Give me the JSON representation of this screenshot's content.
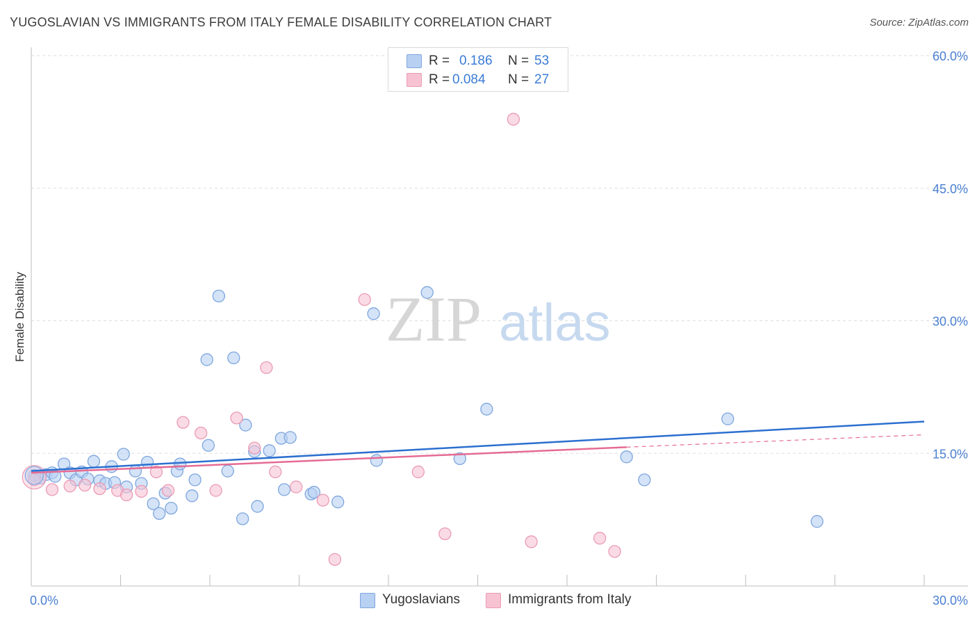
{
  "title": "YUGOSLAVIAN VS IMMIGRANTS FROM ITALY FEMALE DISABILITY CORRELATION CHART",
  "source": "Source: ZipAtlas.com",
  "legend": {
    "r_label": "R =",
    "n_label": "N =",
    "series1": {
      "r": "0.186",
      "n": "53"
    },
    "series2": {
      "r": "0.084",
      "n": "27"
    }
  },
  "watermark": {
    "zip": "ZIP",
    "atlas": "atlas"
  },
  "colors": {
    "blue_fill": "#b8d0f2",
    "blue_stroke": "#7ea6de",
    "blue_line": "#2b6fcf",
    "pink_fill": "#f7c3d3",
    "pink_stroke": "#eb9ab4",
    "pink_line": "#e56b94",
    "tick_text": "#4a7fd0",
    "grid": "#dddddd"
  },
  "chart_data": {
    "type": "scatter",
    "xlabel": "",
    "ylabel": "Female Disability",
    "xlim": [
      0,
      30
    ],
    "ylim": [
      0,
      60
    ],
    "x_tick_labels": [
      "0.0%",
      "30.0%"
    ],
    "y_ticks": [
      15,
      30,
      45,
      60
    ],
    "y_tick_labels": [
      "15.0%",
      "30.0%",
      "45.0%",
      "60.0%"
    ],
    "grid": true,
    "legend_position": "top-center",
    "series": [
      {
        "name": "Yugoslavians",
        "r": 0.186,
        "n": 53,
        "trend": {
          "x": [
            0,
            30
          ],
          "y": [
            13.0,
            18.6
          ]
        },
        "points": [
          [
            0.1,
            12.5
          ],
          [
            0.3,
            12.2
          ],
          [
            0.5,
            12.6
          ],
          [
            0.7,
            12.8
          ],
          [
            0.8,
            12.4
          ],
          [
            1.1,
            13.8
          ],
          [
            1.3,
            12.8
          ],
          [
            1.5,
            12.0
          ],
          [
            1.7,
            12.9
          ],
          [
            1.9,
            12.1
          ],
          [
            2.1,
            14.1
          ],
          [
            2.3,
            11.9
          ],
          [
            2.5,
            11.6
          ],
          [
            2.7,
            13.5
          ],
          [
            2.8,
            11.7
          ],
          [
            3.1,
            14.9
          ],
          [
            3.2,
            11.2
          ],
          [
            3.5,
            13.0
          ],
          [
            3.7,
            11.6
          ],
          [
            3.9,
            14.0
          ],
          [
            4.1,
            9.3
          ],
          [
            4.3,
            8.2
          ],
          [
            4.5,
            10.5
          ],
          [
            4.7,
            8.8
          ],
          [
            4.9,
            13.0
          ],
          [
            5.0,
            13.8
          ],
          [
            5.4,
            10.2
          ],
          [
            5.5,
            12.0
          ],
          [
            5.9,
            25.6
          ],
          [
            5.95,
            15.9
          ],
          [
            6.3,
            32.8
          ],
          [
            6.6,
            13.0
          ],
          [
            7.1,
            7.6
          ],
          [
            6.8,
            25.8
          ],
          [
            7.2,
            18.2
          ],
          [
            7.5,
            15.2
          ],
          [
            7.6,
            9.0
          ],
          [
            8.0,
            15.3
          ],
          [
            8.4,
            16.7
          ],
          [
            8.5,
            10.9
          ],
          [
            8.7,
            16.8
          ],
          [
            9.4,
            10.4
          ],
          [
            9.5,
            10.6
          ],
          [
            10.3,
            9.5
          ],
          [
            11.5,
            30.8
          ],
          [
            11.6,
            14.2
          ],
          [
            13.3,
            33.2
          ],
          [
            14.4,
            14.4
          ],
          [
            15.3,
            20.0
          ],
          [
            20.0,
            14.6
          ],
          [
            20.6,
            12.0
          ],
          [
            23.4,
            18.9
          ],
          [
            26.4,
            7.3
          ]
        ]
      },
      {
        "name": "Immigrants from Italy",
        "r": 0.084,
        "n": 27,
        "trend": {
          "x": [
            0,
            20
          ],
          "y": [
            12.8,
            15.7
          ]
        },
        "trend_dashed": {
          "x": [
            20,
            30
          ],
          "y": [
            15.7,
            17.1
          ]
        },
        "points": [
          [
            0.1,
            12.0
          ],
          [
            0.7,
            10.9
          ],
          [
            1.3,
            11.3
          ],
          [
            1.8,
            11.4
          ],
          [
            2.3,
            11.0
          ],
          [
            2.9,
            10.8
          ],
          [
            3.2,
            10.3
          ],
          [
            3.7,
            10.7
          ],
          [
            4.2,
            12.9
          ],
          [
            4.6,
            10.8
          ],
          [
            5.1,
            18.5
          ],
          [
            5.7,
            17.3
          ],
          [
            6.2,
            10.8
          ],
          [
            6.9,
            19.0
          ],
          [
            7.5,
            15.6
          ],
          [
            7.9,
            24.7
          ],
          [
            8.2,
            12.9
          ],
          [
            8.9,
            11.2
          ],
          [
            9.8,
            9.7
          ],
          [
            10.2,
            3.0
          ],
          [
            11.2,
            32.4
          ],
          [
            13.0,
            12.9
          ],
          [
            13.9,
            5.9
          ],
          [
            16.2,
            52.8
          ],
          [
            16.8,
            5.0
          ],
          [
            19.1,
            5.4
          ],
          [
            19.6,
            3.9
          ]
        ]
      }
    ]
  }
}
